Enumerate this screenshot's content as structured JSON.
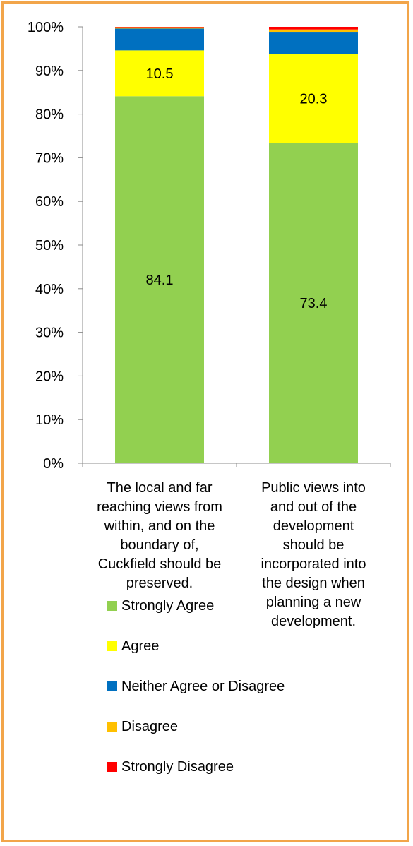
{
  "chart_data": {
    "type": "bar",
    "stacked": true,
    "percent": true,
    "categories": [
      [
        "The local and far",
        "reaching views from",
        "within, and on the",
        "boundary of,",
        "Cuckfield should be",
        "preserved."
      ],
      [
        "Public views into",
        "and out of the",
        "development",
        "should be",
        "incorporated into",
        "the design when",
        "planning a new",
        "development."
      ]
    ],
    "series": [
      {
        "name": "Strongly Agree",
        "color": "#92D050",
        "values": [
          84.1,
          73.4
        ],
        "labels": [
          "84.1",
          "73.4"
        ]
      },
      {
        "name": "Agree",
        "color": "#FFFF00",
        "values": [
          10.5,
          20.3
        ],
        "labels": [
          "10.5",
          "20.3"
        ]
      },
      {
        "name": "Neither Agree or Disagree",
        "color": "#0070C0",
        "values": [
          5.0,
          5.0
        ],
        "labels": [
          "",
          ""
        ]
      },
      {
        "name": "Disagree",
        "color": "#FFC000",
        "values": [
          0.3,
          0.7
        ],
        "labels": [
          "",
          ""
        ]
      },
      {
        "name": "Strongly Disagree",
        "color": "#FF0000",
        "values": [
          0.1,
          0.6
        ],
        "labels": [
          "",
          ""
        ]
      }
    ],
    "ylim": [
      0,
      100
    ],
    "yticks": [
      "0%",
      "10%",
      "20%",
      "30%",
      "40%",
      "50%",
      "60%",
      "70%",
      "80%",
      "90%",
      "100%"
    ],
    "grid": false,
    "legend_position": "bottom",
    "border_color": "#F2A54A"
  }
}
